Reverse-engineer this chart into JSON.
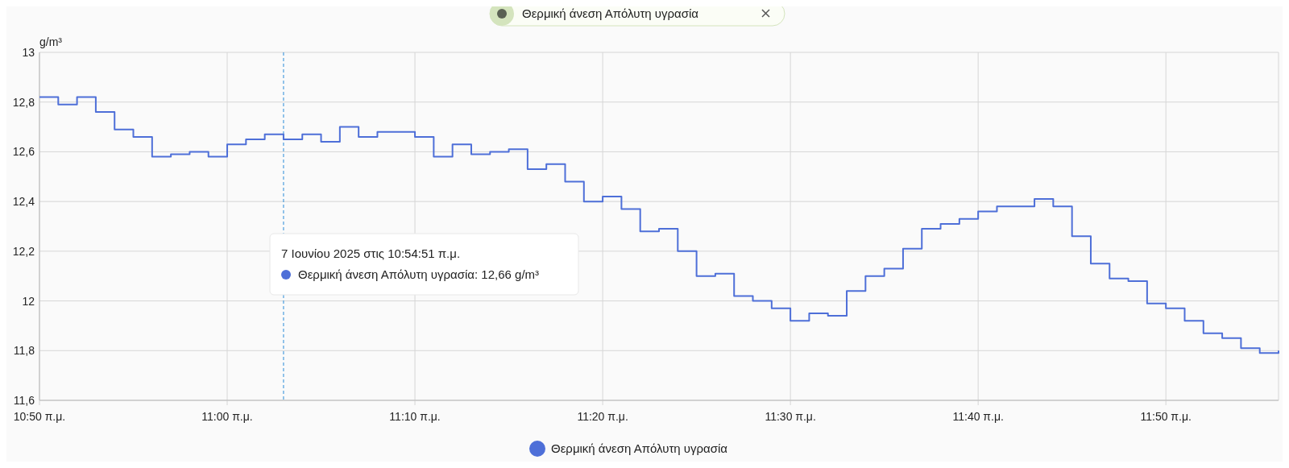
{
  "chart_data": {
    "type": "step",
    "ylabel": "g/m³",
    "legend": "bottom",
    "grid": true,
    "marker": "none",
    "line_style": "solid",
    "xlim": [
      "2025-06-07T10:50",
      "2025-06-07T11:56"
    ],
    "xticks": [
      {
        "value": "2025-06-07T10:50",
        "label": "10:50 π.μ."
      },
      {
        "value": "2025-06-07T11:00",
        "label": "11:00 π.μ."
      },
      {
        "value": "2025-06-07T11:10",
        "label": "11:10 π.μ."
      },
      {
        "value": "2025-06-07T11:20",
        "label": "11:20 π.μ."
      },
      {
        "value": "2025-06-07T11:30",
        "label": "11:30 π.μ."
      },
      {
        "value": "2025-06-07T11:40",
        "label": "11:40 π.μ."
      },
      {
        "value": "2025-06-07T11:50",
        "label": "11:50 π.μ."
      }
    ],
    "ylim": [
      11.6,
      13
    ],
    "yticks": [
      {
        "value": 11.6,
        "label": "11,6"
      },
      {
        "value": 11.8,
        "label": "11,8"
      },
      12,
      {
        "value": 12.2,
        "label": "12,2"
      },
      {
        "value": 12.4,
        "label": "12,4"
      },
      {
        "value": 12.6,
        "label": "12,6"
      },
      {
        "value": 12.8,
        "label": "12,8"
      },
      13
    ],
    "ref_lines": [
      {
        "axis": "x",
        "value": "2025-06-07T11:03",
        "line_style": "dashed",
        "color": "#2a8bd8"
      }
    ],
    "annotations": [
      "Θερμική άνεση Απόλυτη υγρασία",
      "7 Ιουνίου 2025 στις 10:54:51 π.μ.",
      "Θερμική άνεση Απόλυτη υγρασία: 12,66 g/m³"
    ],
    "x": [
      "2025-06-07T10:50",
      "2025-06-07T10:51",
      "2025-06-07T10:52",
      "2025-06-07T10:53",
      "2025-06-07T10:54",
      "2025-06-07T10:55",
      "2025-06-07T10:56",
      "2025-06-07T10:57",
      "2025-06-07T10:58",
      "2025-06-07T10:59",
      "2025-06-07T11:00",
      "2025-06-07T11:01",
      "2025-06-07T11:02",
      "2025-06-07T11:03",
      "2025-06-07T11:04",
      "2025-06-07T11:05",
      "2025-06-07T11:06",
      "2025-06-07T11:07",
      "2025-06-07T11:08",
      "2025-06-07T11:09",
      "2025-06-07T11:10",
      "2025-06-07T11:11",
      "2025-06-07T11:12",
      "2025-06-07T11:13",
      "2025-06-07T11:14",
      "2025-06-07T11:15",
      "2025-06-07T11:16",
      "2025-06-07T11:17",
      "2025-06-07T11:18",
      "2025-06-07T11:19",
      "2025-06-07T11:20",
      "2025-06-07T11:21",
      "2025-06-07T11:22",
      "2025-06-07T11:23",
      "2025-06-07T11:24",
      "2025-06-07T11:25",
      "2025-06-07T11:26",
      "2025-06-07T11:27",
      "2025-06-07T11:28",
      "2025-06-07T11:29",
      "2025-06-07T11:30",
      "2025-06-07T11:31",
      "2025-06-07T11:32",
      "2025-06-07T11:33",
      "2025-06-07T11:34",
      "2025-06-07T11:35",
      "2025-06-07T11:36",
      "2025-06-07T11:37",
      "2025-06-07T11:38",
      "2025-06-07T11:39",
      "2025-06-07T11:40",
      "2025-06-07T11:41",
      "2025-06-07T11:42",
      "2025-06-07T11:43",
      "2025-06-07T11:44",
      "2025-06-07T11:45",
      "2025-06-07T11:46",
      "2025-06-07T11:47",
      "2025-06-07T11:48",
      "2025-06-07T11:49",
      "2025-06-07T11:50",
      "2025-06-07T11:51",
      "2025-06-07T11:52",
      "2025-06-07T11:53",
      "2025-06-07T11:54",
      "2025-06-07T11:55",
      "2025-06-07T11:56"
    ],
    "series": [
      {
        "name": "Θερμική άνεση Απόλυτη υγρασία",
        "color": "#4e6fd8",
        "values": [
          12.82,
          12.79,
          12.82,
          12.76,
          12.69,
          12.66,
          12.58,
          12.59,
          12.6,
          12.58,
          12.63,
          12.65,
          12.67,
          12.65,
          12.67,
          12.64,
          12.7,
          12.66,
          12.68,
          12.68,
          12.66,
          12.58,
          12.63,
          12.59,
          12.6,
          12.61,
          12.53,
          12.55,
          12.48,
          12.4,
          12.42,
          12.37,
          12.28,
          12.29,
          12.2,
          12.1,
          12.11,
          12.02,
          12,
          11.97,
          11.92,
          11.95,
          11.94,
          12.04,
          12.1,
          12.13,
          12.21,
          12.29,
          12.31,
          12.33,
          12.36,
          12.38,
          12.38,
          12.41,
          12.38,
          12.26,
          12.15,
          12.09,
          12.08,
          11.99,
          11.97,
          11.92,
          11.87,
          11.85,
          11.81,
          11.79,
          11.8
        ]
      }
    ]
  }
}
